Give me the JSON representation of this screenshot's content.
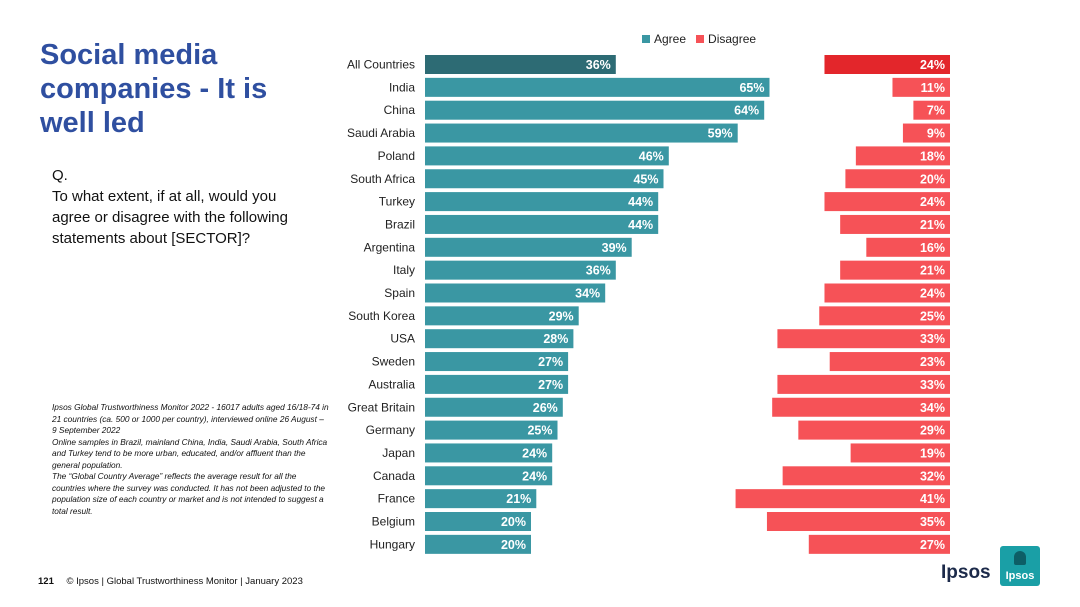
{
  "title": "Social media companies - It is well led",
  "question": {
    "q": "Q.",
    "text": "To what extent, if at all, would you agree or disagree with the following statements about [SECTOR]?"
  },
  "note": {
    "line1": "Ipsos Global Trustworthiness Monitor 2022 - 16017 adults aged 16/18-74 in 21 countries (ca. 500 or 1000 per country), interviewed online 26 August – 9 September 2022",
    "line2": "Online samples in Brazil, mainland China, India, Saudi Arabia, South Africa and Turkey tend to be more urban, educated, and/or affluent than the general population.",
    "line3": "The “Global Country Average” reflects the average result for all the countries where the survey was conducted. It has not been adjusted to the population size of each country or market and is not intended to suggest a total result."
  },
  "footer": {
    "page": "121",
    "text": "© Ipsos | Global Trustworthiness Monitor | January 2023"
  },
  "logo": {
    "word": "Ipsos",
    "box_text": "Ipsos"
  },
  "colors": {
    "agree": "#3a97a3",
    "agree_highlight": "#2d6b74",
    "disagree": "#f65257",
    "disagree_highlight": "#e3262b",
    "title": "#2f4fa0"
  },
  "chart_data": {
    "type": "bar",
    "legend_position": "top",
    "categories": [
      "All Countries",
      "India",
      "China",
      "Saudi Arabia",
      "Poland",
      "South Africa",
      "Turkey",
      "Brazil",
      "Argentina",
      "Italy",
      "Spain",
      "South Korea",
      "USA",
      "Sweden",
      "Australia",
      "Great Britain",
      "Germany",
      "Japan",
      "Canada",
      "France",
      "Belgium",
      "Hungary"
    ],
    "series": [
      {
        "name": "Agree",
        "values": [
          36,
          65,
          64,
          59,
          46,
          45,
          44,
          44,
          39,
          36,
          34,
          29,
          28,
          27,
          27,
          26,
          25,
          24,
          24,
          21,
          20,
          20
        ]
      },
      {
        "name": "Disagree",
        "values": [
          24,
          11,
          7,
          9,
          18,
          20,
          24,
          21,
          16,
          21,
          24,
          25,
          33,
          23,
          33,
          34,
          29,
          19,
          32,
          41,
          35,
          27
        ]
      }
    ],
    "value_suffix": "%"
  }
}
